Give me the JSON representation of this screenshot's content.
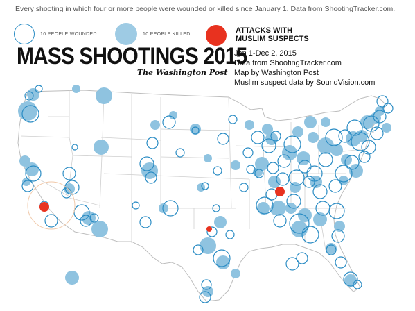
{
  "header": {
    "caption": "Every shooting in which four or more people were wounded or killed since January 1. Data from ShootingTracker.com."
  },
  "legend": {
    "wounded_label": "10 PEOPLE WOUNDED",
    "killed_label": "10 PEOPLE KILLED",
    "attack_label_line1": "ATTACKS WITH",
    "attack_label_line2": "MUSLIM SUSPECTS"
  },
  "title": {
    "main": "MASS SHOOTINGS 2015",
    "publisher": "The Washington Post"
  },
  "info": {
    "line1": "Jan 1-Dec 2, 2015",
    "line2": "Data from ShootingTracker.com",
    "line3": "Map by Washington Post",
    "line4": "Muslim suspect data by SoundVision.com"
  },
  "colors": {
    "wounded": "#2a8cc4",
    "killed": "#8fc3e0",
    "attack": "#e8321f",
    "land": "#ffffff",
    "border": "#c8c8c8"
  },
  "map_layers": [
    "united-states-outline",
    "state-borders"
  ]
}
